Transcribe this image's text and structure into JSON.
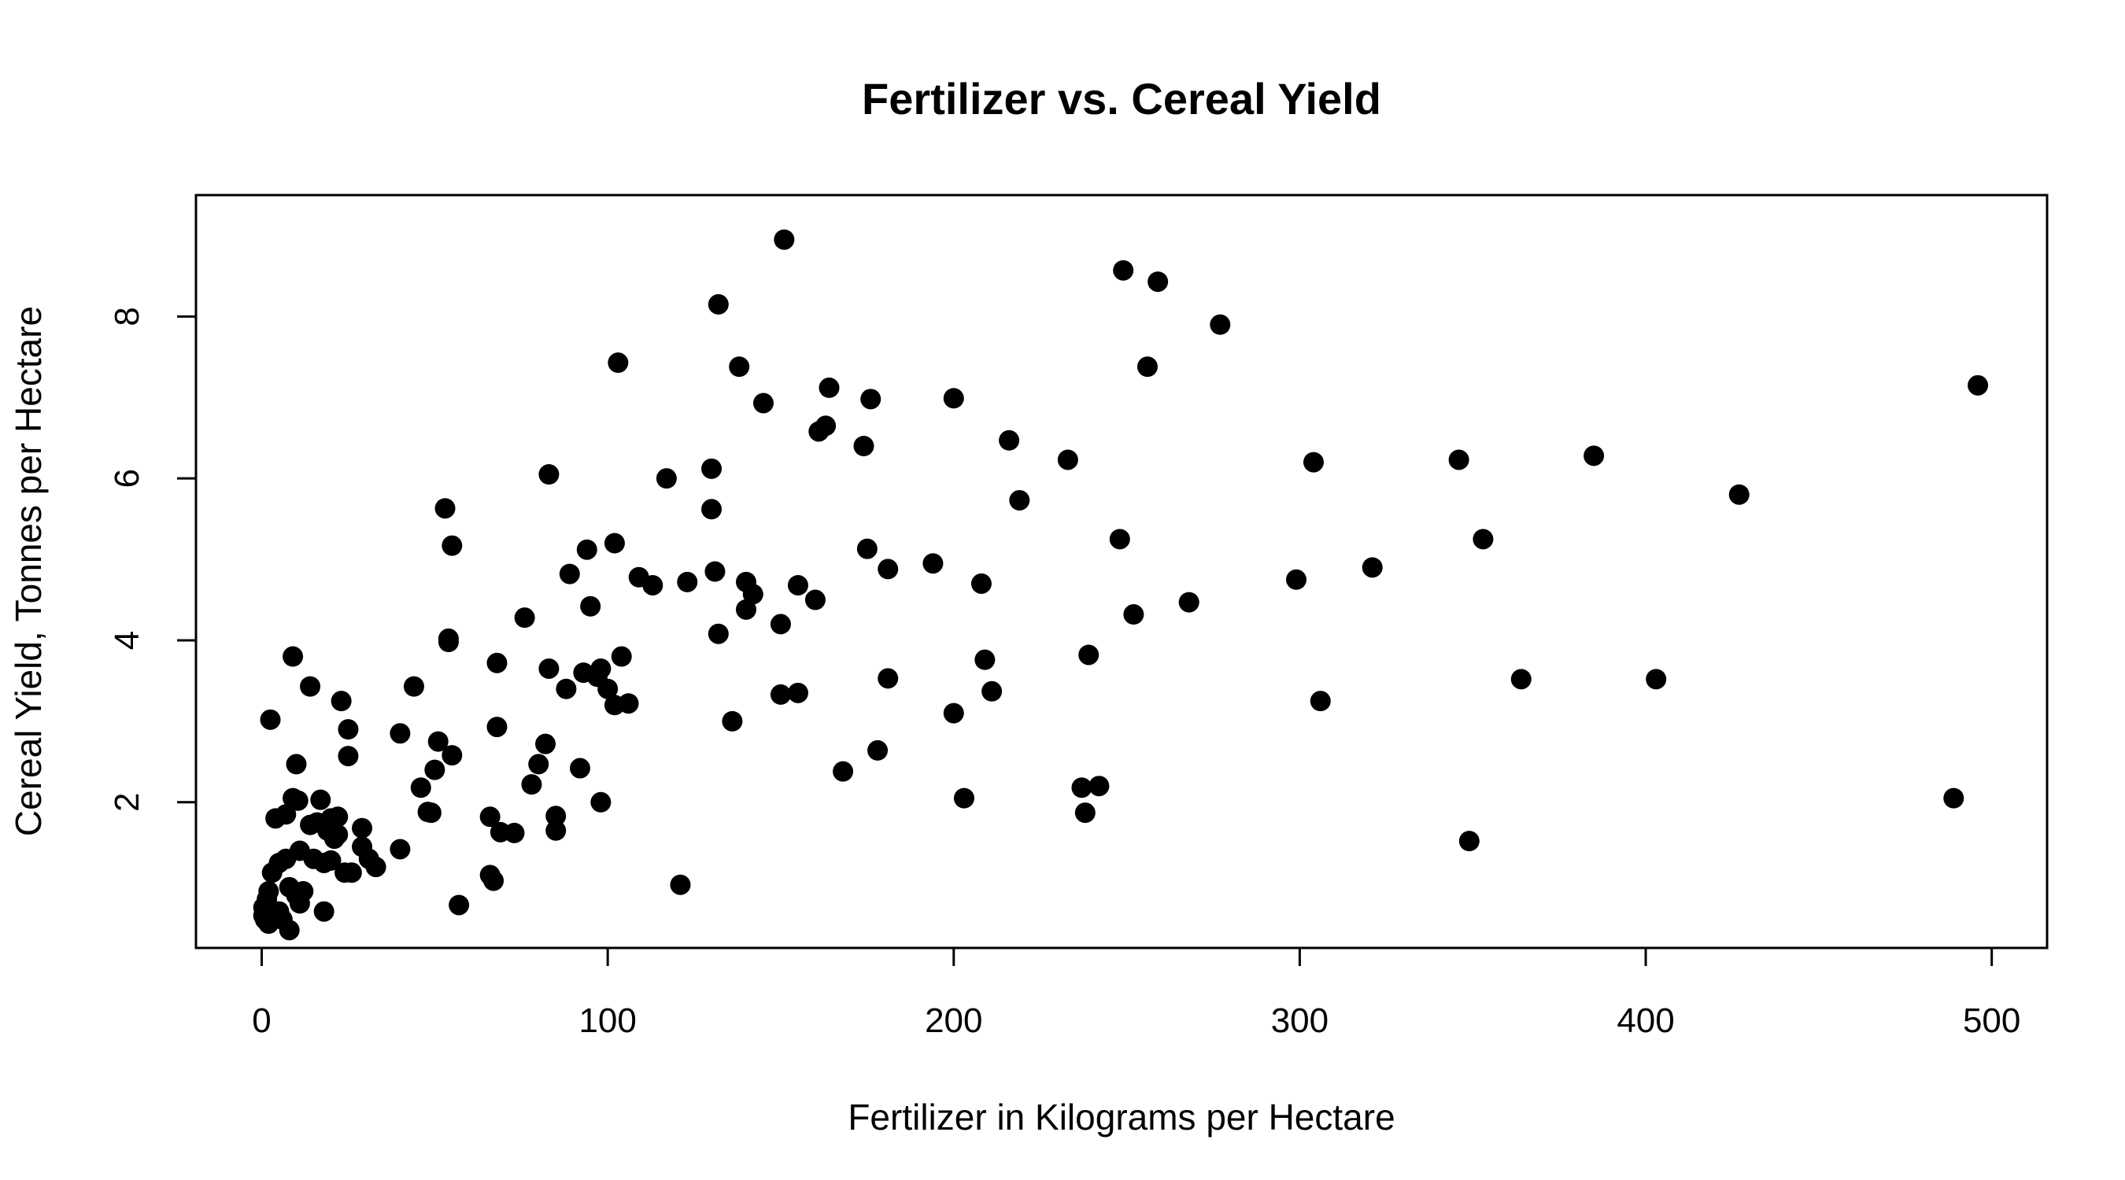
{
  "chart_data": {
    "type": "scatter",
    "title": "Fertilizer vs. Cereal Yield",
    "xlabel": "Fertilizer in Kilograms per Hectare",
    "ylabel": "Cereal Yield, Tonnes per Hectare",
    "xlim": [
      -19,
      516
    ],
    "ylim": [
      0.2,
      9.5
    ],
    "x_ticks": [
      0,
      100,
      200,
      300,
      400,
      500
    ],
    "x_tick_labels": [
      "0",
      "100",
      "200",
      "300",
      "400",
      "500"
    ],
    "y_ticks": [
      2,
      4,
      6,
      8
    ],
    "y_tick_labels": [
      "2",
      "4",
      "6",
      "8"
    ],
    "grid": false,
    "legend": "none",
    "point_color": "#000000",
    "points": [
      [
        0.5,
        0.6
      ],
      [
        0.5,
        0.7
      ],
      [
        1,
        0.55
      ],
      [
        1.5,
        0.8
      ],
      [
        2,
        0.5
      ],
      [
        2,
        0.9
      ],
      [
        2.5,
        3.02
      ],
      [
        3,
        1.13
      ],
      [
        4,
        0.6
      ],
      [
        4,
        1.8
      ],
      [
        5,
        0.65
      ],
      [
        5,
        1.25
      ],
      [
        6,
        0.55
      ],
      [
        7,
        1.3
      ],
      [
        7,
        1.85
      ],
      [
        8,
        0.95
      ],
      [
        8,
        0.42
      ],
      [
        9,
        2.05
      ],
      [
        9,
        3.8
      ],
      [
        10,
        2.47
      ],
      [
        10,
        0.85
      ],
      [
        10.5,
        2.02
      ],
      [
        11,
        1.4
      ],
      [
        11,
        0.75
      ],
      [
        12,
        0.9
      ],
      [
        14,
        1.72
      ],
      [
        14,
        3.43
      ],
      [
        15,
        1.3
      ],
      [
        16,
        1.75
      ],
      [
        17,
        2.03
      ],
      [
        18,
        1.25
      ],
      [
        18,
        0.65
      ],
      [
        19,
        1.65
      ],
      [
        20,
        1.28
      ],
      [
        20,
        1.8
      ],
      [
        21,
        1.55
      ],
      [
        22,
        1.6
      ],
      [
        22,
        1.82
      ],
      [
        23,
        3.25
      ],
      [
        24,
        1.13
      ],
      [
        25,
        2.9
      ],
      [
        25,
        2.57
      ],
      [
        26,
        1.13
      ],
      [
        29,
        1.68
      ],
      [
        29,
        1.45
      ],
      [
        31,
        1.3
      ],
      [
        33,
        1.2
      ],
      [
        40,
        2.85
      ],
      [
        40,
        1.42
      ],
      [
        44,
        3.43
      ],
      [
        46,
        2.18
      ],
      [
        48,
        1.88
      ],
      [
        49,
        1.87
      ],
      [
        50,
        2.4
      ],
      [
        51,
        2.75
      ],
      [
        53,
        5.63
      ],
      [
        54,
        3.98
      ],
      [
        54,
        4.02
      ],
      [
        55,
        2.58
      ],
      [
        55,
        5.17
      ],
      [
        57,
        0.73
      ],
      [
        66,
        1.82
      ],
      [
        66,
        1.1
      ],
      [
        67,
        1.03
      ],
      [
        68,
        3.72
      ],
      [
        68,
        2.93
      ],
      [
        69,
        1.63
      ],
      [
        73,
        1.62
      ],
      [
        76,
        4.28
      ],
      [
        78,
        2.22
      ],
      [
        80,
        2.47
      ],
      [
        82,
        2.72
      ],
      [
        83,
        3.65
      ],
      [
        83,
        6.05
      ],
      [
        85,
        1.65
      ],
      [
        85,
        1.83
      ],
      [
        88,
        3.4
      ],
      [
        89,
        4.82
      ],
      [
        92,
        2.42
      ],
      [
        93,
        3.6
      ],
      [
        94,
        5.12
      ],
      [
        95,
        4.42
      ],
      [
        97,
        3.55
      ],
      [
        98,
        2.0
      ],
      [
        98,
        3.65
      ],
      [
        100,
        3.4
      ],
      [
        102,
        5.2
      ],
      [
        102,
        3.2
      ],
      [
        103,
        7.43
      ],
      [
        104,
        3.8
      ],
      [
        106,
        3.22
      ],
      [
        109,
        4.78
      ],
      [
        113,
        4.68
      ],
      [
        117,
        6.0
      ],
      [
        121,
        0.98
      ],
      [
        123,
        4.72
      ],
      [
        130,
        5.62
      ],
      [
        130,
        6.12
      ],
      [
        131,
        4.85
      ],
      [
        132,
        4.08
      ],
      [
        132,
        8.15
      ],
      [
        136,
        3.0
      ],
      [
        138,
        7.38
      ],
      [
        140,
        4.38
      ],
      [
        140,
        4.72
      ],
      [
        142,
        4.57
      ],
      [
        145,
        6.93
      ],
      [
        150,
        4.2
      ],
      [
        150,
        3.33
      ],
      [
        151,
        8.95
      ],
      [
        155,
        4.68
      ],
      [
        155,
        3.35
      ],
      [
        160,
        4.5
      ],
      [
        161,
        6.58
      ],
      [
        163,
        6.65
      ],
      [
        164,
        7.12
      ],
      [
        168,
        2.38
      ],
      [
        174,
        6.4
      ],
      [
        175,
        5.13
      ],
      [
        176,
        6.98
      ],
      [
        178,
        2.64
      ],
      [
        181,
        4.88
      ],
      [
        181,
        3.53
      ],
      [
        194,
        4.95
      ],
      [
        200,
        6.99
      ],
      [
        200,
        3.1
      ],
      [
        203,
        2.05
      ],
      [
        208,
        4.7
      ],
      [
        209,
        3.76
      ],
      [
        211,
        3.37
      ],
      [
        216,
        6.47
      ],
      [
        219,
        5.73
      ],
      [
        233,
        6.23
      ],
      [
        237,
        2.18
      ],
      [
        238,
        1.87
      ],
      [
        239,
        3.82
      ],
      [
        242,
        2.2
      ],
      [
        248,
        5.25
      ],
      [
        249,
        8.57
      ],
      [
        252,
        4.32
      ],
      [
        256,
        7.38
      ],
      [
        259,
        8.43
      ],
      [
        268,
        4.47
      ],
      [
        277,
        7.9
      ],
      [
        299,
        4.75
      ],
      [
        304,
        6.2
      ],
      [
        306,
        3.25
      ],
      [
        321,
        4.9
      ],
      [
        346,
        6.23
      ],
      [
        349,
        1.52
      ],
      [
        353,
        5.25
      ],
      [
        364,
        3.52
      ],
      [
        385,
        6.28
      ],
      [
        403,
        3.52
      ],
      [
        427,
        5.8
      ],
      [
        489,
        2.05
      ],
      [
        496,
        7.15
      ]
    ]
  }
}
